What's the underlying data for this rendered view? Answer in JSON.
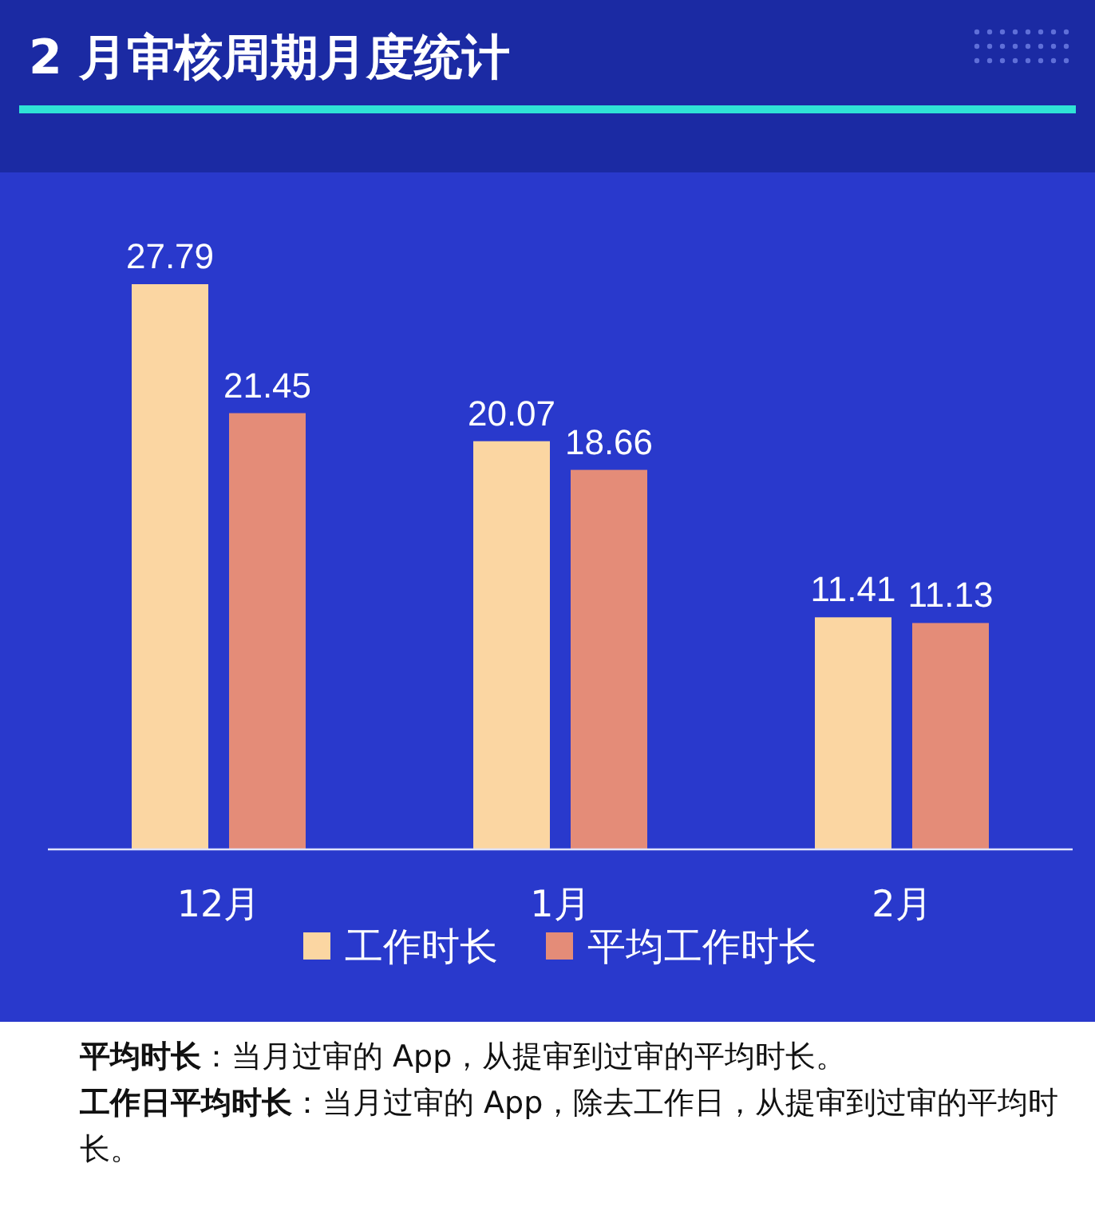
{
  "chart_data": {
    "type": "bar",
    "title": "2 月审核周期月度统计",
    "categories": [
      "12月",
      "1月",
      "2月"
    ],
    "series": [
      {
        "name": "工作时长",
        "color": "#fbd6a2",
        "values": [
          27.79,
          20.07,
          11.41
        ]
      },
      {
        "name": "平均工作时长",
        "color": "#e48c78",
        "values": [
          21.45,
          18.66,
          11.13
        ]
      }
    ],
    "data_labels": true,
    "legend": "bottom",
    "annotations": [
      "平均时长：当月过审的 App，从提审到过审的平均时长。",
      "工作日平均时长：当月过审的 App，除去工作日，从提审到过审的平均时长。"
    ]
  }
}
